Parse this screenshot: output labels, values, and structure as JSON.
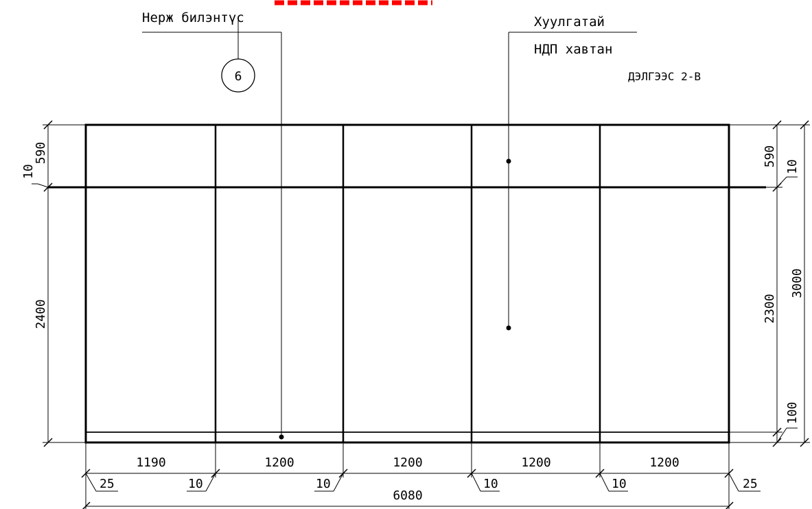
{
  "leaders": {
    "left_label": "Нерж билэнтүс",
    "right_label_1": "Хуулгатай",
    "right_label_2": "НДП хавтан",
    "detail_number": "6",
    "section_ref": "ДЭЛГЭЭС 2-В"
  },
  "dimensions": {
    "left": {
      "top_gap": "10",
      "top_band": "590",
      "main": "2400"
    },
    "right": {
      "top_band": "590",
      "top_gap": "10",
      "middle": "2300",
      "overall": "3000",
      "bottom": "100"
    },
    "bottom": {
      "panels": [
        "1190",
        "1200",
        "1200",
        "1200",
        "1200"
      ],
      "edge_left": "25",
      "joints": [
        "10",
        "10",
        "10",
        "10"
      ],
      "edge_right": "25",
      "total": "6080"
    }
  },
  "colors": {
    "cut_marker": "#ff0000",
    "lines": "#000000"
  }
}
